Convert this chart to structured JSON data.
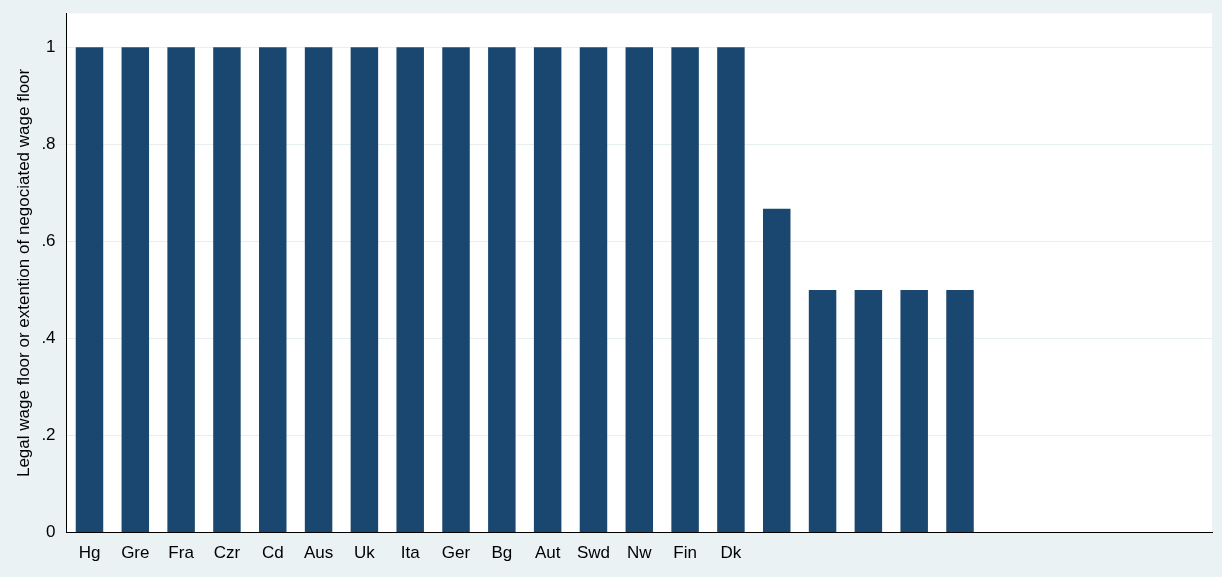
{
  "chart_data": {
    "type": "bar",
    "ylabel": "Legal wage floor or extention of negociated wage floor",
    "categories": [
      "Hg",
      "Gre",
      "Fra",
      "Czr",
      "Cd",
      "Aus",
      "Uk",
      "Ita",
      "Ger",
      "Bg",
      "Aut",
      "Swd",
      "Nw",
      "Fin",
      "Dk",
      null,
      null,
      null,
      null,
      null,
      null,
      null,
      null,
      null,
      null
    ],
    "values": [
      1,
      1,
      1,
      1,
      1,
      1,
      1,
      1,
      1,
      1,
      1,
      1,
      1,
      1,
      1,
      0.667,
      0.5,
      0.5,
      0.5,
      0.5,
      null,
      null,
      null,
      null,
      null
    ],
    "color": "#1a476f",
    "ylim": [
      0,
      1.07
    ],
    "yticks": [
      0,
      {
        "value": 0.2,
        "label": ".2"
      },
      {
        "value": 0.4,
        "label": ".4"
      },
      {
        "value": 0.6,
        "label": ".6"
      },
      {
        "value": 0.8,
        "label": ".8"
      },
      1
    ],
    "grid": "y"
  }
}
